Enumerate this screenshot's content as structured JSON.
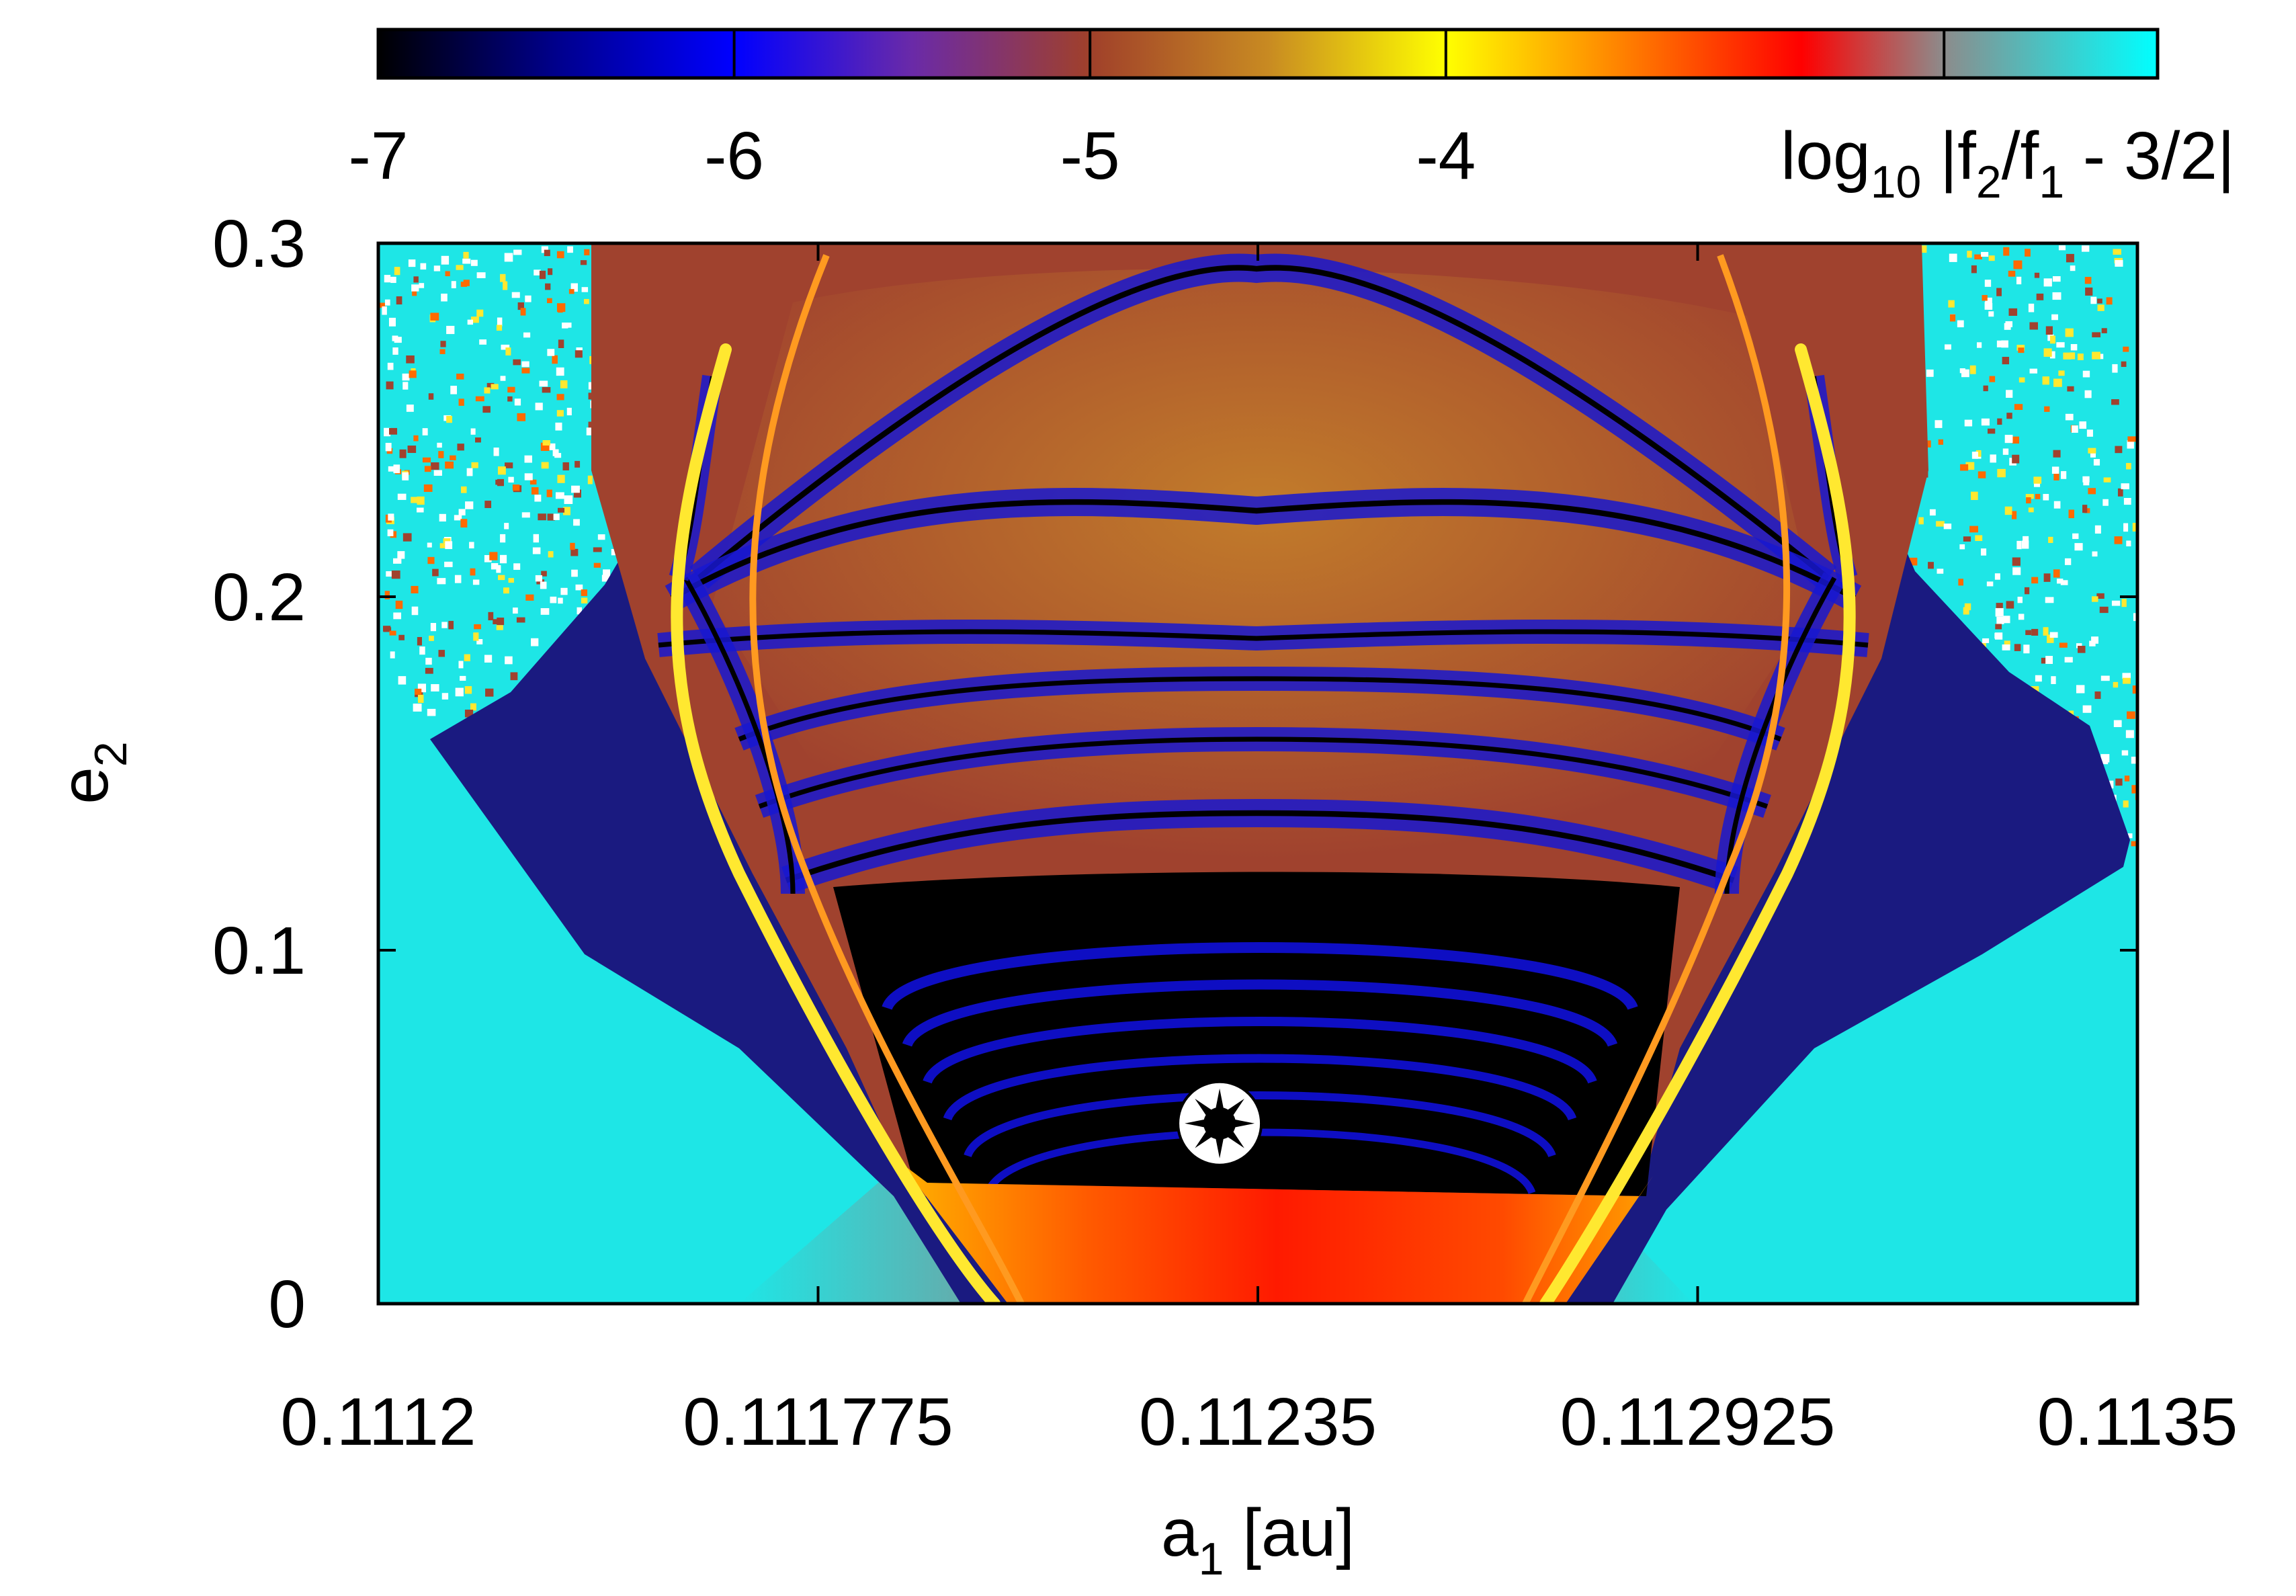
{
  "chart_data": {
    "type": "heatmap",
    "title": "",
    "xlabel": {
      "main": "a",
      "sub": "1",
      "rest": " [au]"
    },
    "ylabel": {
      "main": "e",
      "sub": "2"
    },
    "xlim": [
      0.1112,
      0.1135
    ],
    "ylim": [
      0,
      0.3
    ],
    "x_ticks": [
      {
        "value": 0.1112,
        "label": "0.1112"
      },
      {
        "value": 0.111775,
        "label": "0.111775"
      },
      {
        "value": 0.11235,
        "label": "0.11235"
      },
      {
        "value": 0.112925,
        "label": "0.112925"
      },
      {
        "value": 0.1135,
        "label": "0.1135"
      }
    ],
    "y_ticks": [
      {
        "value": 0,
        "label": "0"
      },
      {
        "value": 0.1,
        "label": "0.1"
      },
      {
        "value": 0.2,
        "label": "0.2"
      },
      {
        "value": 0.3,
        "label": "0.3"
      }
    ],
    "colorbar": {
      "label": {
        "pre": "log",
        "sub": "10",
        "post": " |f",
        "sub2": "2",
        "mid": "/f",
        "sub3": "1",
        "end": " - 3/2|"
      },
      "range": [
        -7,
        -2
      ],
      "ticks": [
        {
          "value": -7,
          "label": "-7"
        },
        {
          "value": -6,
          "label": "-6"
        },
        {
          "value": -5,
          "label": "-5"
        },
        {
          "value": -4,
          "label": "-4"
        }
      ],
      "stops": [
        {
          "value": -7.0,
          "color": "#000000"
        },
        {
          "value": -6.5,
          "color": "#00008c"
        },
        {
          "value": -6.0,
          "color": "#0000ff"
        },
        {
          "value": -5.5,
          "color": "#6a2aa8"
        },
        {
          "value": -5.0,
          "color": "#a0402a"
        },
        {
          "value": -4.5,
          "color": "#c88a22"
        },
        {
          "value": -4.0,
          "color": "#ffff00"
        },
        {
          "value": -3.5,
          "color": "#ff8000"
        },
        {
          "value": -3.0,
          "color": "#ff0000"
        },
        {
          "value": -2.6,
          "color": "#8c8c8c"
        },
        {
          "value": -2.0,
          "color": "#00ffff"
        }
      ]
    },
    "marker": {
      "x": 0.1123,
      "y": 0.051,
      "symbol": "star-in-circle"
    },
    "colors": {
      "background_chaotic": "#1ee6e6",
      "deep": "#000000",
      "blue": "#1010d8",
      "brown": "#a0422e",
      "orange": "#c8862a",
      "yellow": "#ffe830",
      "red": "#ff2a00"
    },
    "grid": false
  }
}
